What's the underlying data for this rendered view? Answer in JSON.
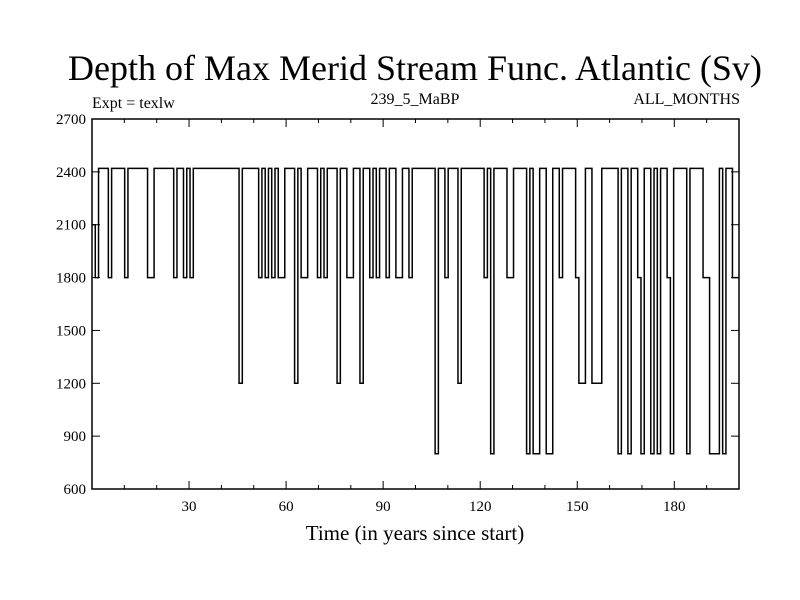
{
  "chart_data": {
    "type": "line",
    "title": "Depth of Max Merid Stream Func. Atlantic (Sv)",
    "subtitle_left": "Expt = texlw",
    "subtitle_center": "239_5_MaBP",
    "subtitle_right": "ALL_MONTHS",
    "xlabel": "Time (in years since start)",
    "ylabel": "",
    "xlim": [
      0,
      200
    ],
    "ylim": [
      600,
      2700
    ],
    "xticks": [
      30,
      60,
      90,
      120,
      150,
      180
    ],
    "yticks": [
      600,
      900,
      1200,
      1500,
      1800,
      2100,
      2400,
      2700
    ],
    "grid": false,
    "line_color": "#000000",
    "series": [
      {
        "step_values": [
          2100,
          1800,
          2420,
          2420,
          2420,
          1800,
          2420,
          2420,
          2420,
          2420,
          1800,
          2420,
          2420,
          2420,
          2420,
          2420,
          2420,
          1800,
          1800,
          2420,
          2420,
          2420,
          2420,
          2420,
          2420,
          1800,
          2420,
          2420,
          1800,
          2420,
          1800,
          2420,
          2420,
          2420,
          2420,
          2420,
          2420,
          2420,
          2420,
          2420,
          2420,
          2420,
          2420,
          2420,
          2420,
          1200,
          2420,
          2420,
          2420,
          2420,
          2420,
          1800,
          2420,
          1800,
          2420,
          1800,
          2420,
          1800,
          1800,
          2420,
          2420,
          2420,
          1200,
          2420,
          1800,
          1800,
          2420,
          2420,
          2420,
          1800,
          2420,
          1800,
          2420,
          2420,
          2420,
          1200,
          2420,
          2420,
          1800,
          1800,
          2420,
          2420,
          1200,
          2420,
          2420,
          1800,
          2420,
          1800,
          2420,
          2420,
          1800,
          2420,
          2420,
          1800,
          1800,
          2420,
          2420,
          1800,
          2420,
          2420,
          2420,
          2420,
          2420,
          2420,
          2420,
          800,
          2420,
          2420,
          1800,
          2420,
          2420,
          2420,
          1200,
          2420,
          2420,
          2420,
          2420,
          2420,
          2420,
          2420,
          1800,
          2420,
          800,
          2420,
          2420,
          2420,
          2420,
          1800,
          1800,
          2420,
          2420,
          2420,
          2420,
          800,
          2420,
          800,
          800,
          2420,
          2420,
          800,
          800,
          2420,
          2420,
          1800,
          2420,
          2420,
          2420,
          2420,
          1800,
          1200,
          1200,
          2420,
          2420,
          1200,
          1200,
          1200,
          2420,
          2420,
          2420,
          2420,
          2420,
          800,
          2420,
          2420,
          800,
          2420,
          2420,
          1800,
          800,
          2420,
          2420,
          800,
          2420,
          800,
          2420,
          2420,
          1800,
          800,
          2420,
          2420,
          2420,
          2420,
          800,
          2420,
          2420,
          2420,
          2420,
          1800,
          1800,
          800,
          800,
          800,
          2420,
          800,
          2420,
          2420,
          1800,
          1800
        ]
      }
    ]
  }
}
